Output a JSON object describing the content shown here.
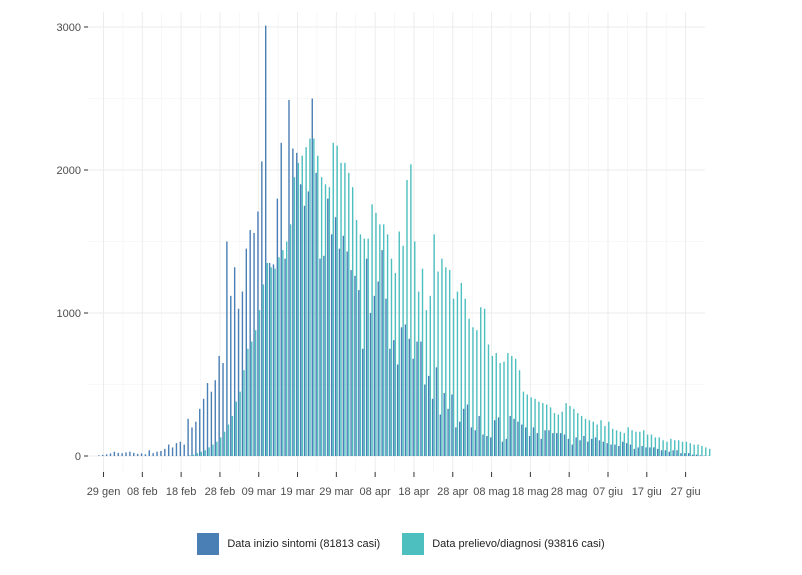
{
  "chart_data": {
    "type": "bar",
    "title": "",
    "xlabel": "",
    "ylabel": "",
    "x_range": [
      "2020-01-25",
      "2020-07-02"
    ],
    "ylim": [
      0,
      3050
    ],
    "grid": true,
    "legend_position": "bottom",
    "yticks": [
      {
        "value": 0,
        "label": "0"
      },
      {
        "value": 1000,
        "label": "1000"
      },
      {
        "value": 2000,
        "label": "2000"
      },
      {
        "value": 3000,
        "label": "3000"
      }
    ],
    "xticks": [
      {
        "date": "2020-01-29",
        "label": "29 gen"
      },
      {
        "date": "2020-02-08",
        "label": "08 feb"
      },
      {
        "date": "2020-02-18",
        "label": "18 feb"
      },
      {
        "date": "2020-02-28",
        "label": "28 feb"
      },
      {
        "date": "2020-03-09",
        "label": "09 mar"
      },
      {
        "date": "2020-03-19",
        "label": "19 mar"
      },
      {
        "date": "2020-03-29",
        "label": "29 mar"
      },
      {
        "date": "2020-04-08",
        "label": "08 apr"
      },
      {
        "date": "2020-04-18",
        "label": "18 apr"
      },
      {
        "date": "2020-04-28",
        "label": "28 apr"
      },
      {
        "date": "2020-05-08",
        "label": "08 mag"
      },
      {
        "date": "2020-05-18",
        "label": "18 mag"
      },
      {
        "date": "2020-05-28",
        "label": "28 mag"
      },
      {
        "date": "2020-06-07",
        "label": "07 giu"
      },
      {
        "date": "2020-06-17",
        "label": "17 giu"
      },
      {
        "date": "2020-06-27",
        "label": "27 giu"
      }
    ],
    "start_date": "2020-01-28",
    "series": [
      {
        "name": "Data inizio sintomi (81813 casi)",
        "color": "#4a7fb5",
        "values": [
          5,
          8,
          12,
          18,
          30,
          22,
          20,
          25,
          30,
          22,
          15,
          18,
          12,
          40,
          20,
          30,
          35,
          50,
          80,
          60,
          90,
          100,
          80,
          260,
          200,
          240,
          330,
          400,
          510,
          450,
          530,
          700,
          650,
          1500,
          1120,
          1320,
          1030,
          1150,
          1450,
          1580,
          1560,
          1710,
          2060,
          3010,
          1350,
          1340,
          1800,
          2190,
          1380,
          2490,
          2150,
          2120,
          1900,
          1750,
          1850,
          2500,
          1980,
          1380,
          1400,
          1800,
          1550,
          1670,
          1450,
          1540,
          1430,
          1300,
          1260,
          1160,
          750,
          1380,
          1000,
          1120,
          1220,
          1440,
          1100,
          750,
          810,
          640,
          900,
          920,
          820,
          680,
          800,
          800,
          500,
          560,
          400,
          620,
          290,
          440,
          330,
          430,
          200,
          240,
          330,
          360,
          200,
          180,
          280,
          150,
          140,
          130,
          250,
          270,
          100,
          120,
          280,
          260,
          240,
          220,
          200,
          140,
          200,
          160,
          120,
          180,
          180,
          160,
          160,
          160,
          150,
          120,
          80,
          130,
          110,
          140,
          100,
          120,
          130,
          110,
          100,
          90,
          80,
          80,
          70,
          100,
          90,
          80,
          50,
          60,
          70,
          60,
          60,
          60,
          50,
          40,
          40,
          30,
          40,
          40,
          20,
          20,
          20,
          10,
          10,
          5,
          3,
          2
        ]
      },
      {
        "name": "Data prelievo/diagnosi (93816 casi)",
        "color": "#4dbfbf",
        "values": [
          0,
          0,
          0,
          0,
          0,
          0,
          0,
          0,
          0,
          0,
          0,
          0,
          0,
          0,
          0,
          0,
          0,
          0,
          0,
          0,
          0,
          0,
          0,
          5,
          10,
          20,
          30,
          40,
          60,
          80,
          100,
          130,
          170,
          220,
          280,
          380,
          450,
          600,
          750,
          800,
          880,
          1020,
          1200,
          1350,
          1320,
          1310,
          1390,
          1440,
          1500,
          1620,
          1950,
          2050,
          2100,
          2160,
          2220,
          2220,
          2100,
          1950,
          1900,
          1880,
          2190,
          2170,
          2050,
          2050,
          1980,
          1880,
          1650,
          1550,
          1520,
          1520,
          1760,
          1700,
          1620,
          1620,
          1550,
          1380,
          1280,
          1570,
          1470,
          1930,
          2040,
          1500,
          1150,
          1310,
          1020,
          1120,
          1550,
          1290,
          1380,
          1320,
          1300,
          1100,
          1150,
          1210,
          1100,
          960,
          900,
          880,
          1040,
          1030,
          780,
          700,
          720,
          650,
          660,
          720,
          700,
          680,
          600,
          450,
          430,
          410,
          400,
          380,
          370,
          360,
          340,
          300,
          290,
          310,
          370,
          350,
          330,
          300,
          280,
          260,
          250,
          240,
          220,
          250,
          210,
          240,
          190,
          180,
          170,
          160,
          200,
          180,
          170,
          170,
          180,
          150,
          150,
          130,
          130,
          110,
          100,
          120,
          110,
          110,
          100,
          100,
          90,
          80,
          80,
          70,
          60,
          50
        ]
      }
    ]
  }
}
